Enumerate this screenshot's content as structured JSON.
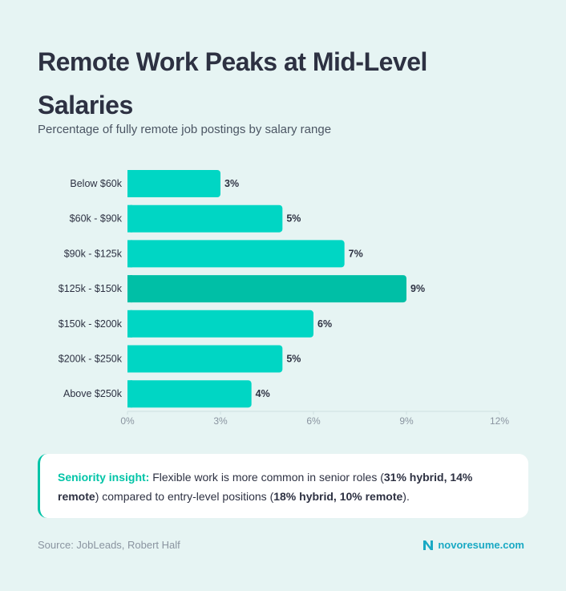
{
  "chart_data": {
    "type": "bar",
    "orientation": "horizontal",
    "title": "Remote Work Peaks at Mid-Level Salaries",
    "subtitle": "Percentage of fully remote job postings by salary range",
    "categories": [
      "Below $60k",
      "$60k - $90k",
      "$90k - $125k",
      "$125k - $150k",
      "$150k - $200k",
      "$200k - $250k",
      "Above $250k"
    ],
    "values": [
      3,
      5,
      7,
      9,
      6,
      5,
      4
    ],
    "data_labels": [
      "3%",
      "5%",
      "7%",
      "9%",
      "6%",
      "5%",
      "4%"
    ],
    "highlight_index": 3,
    "xlim": [
      0,
      12
    ],
    "x_ticks": [
      0,
      3,
      6,
      9,
      12
    ],
    "x_tick_labels": [
      "0%",
      "3%",
      "6%",
      "9%",
      "12%"
    ],
    "grid": false,
    "colors": {
      "bar": "#00d6c4",
      "highlight": "#00bfa6"
    }
  },
  "insight": {
    "label": "Seniority insight:",
    "t1": " Flexible work is more common in senior roles (",
    "b1": "31% hybrid, 14% remote",
    "t2": ") compared to entry-level positions (",
    "b2": "18% hybrid, 10% remote",
    "t3": ")."
  },
  "source": "Source: JobLeads, Robert Half",
  "brand": "novoresume.com"
}
